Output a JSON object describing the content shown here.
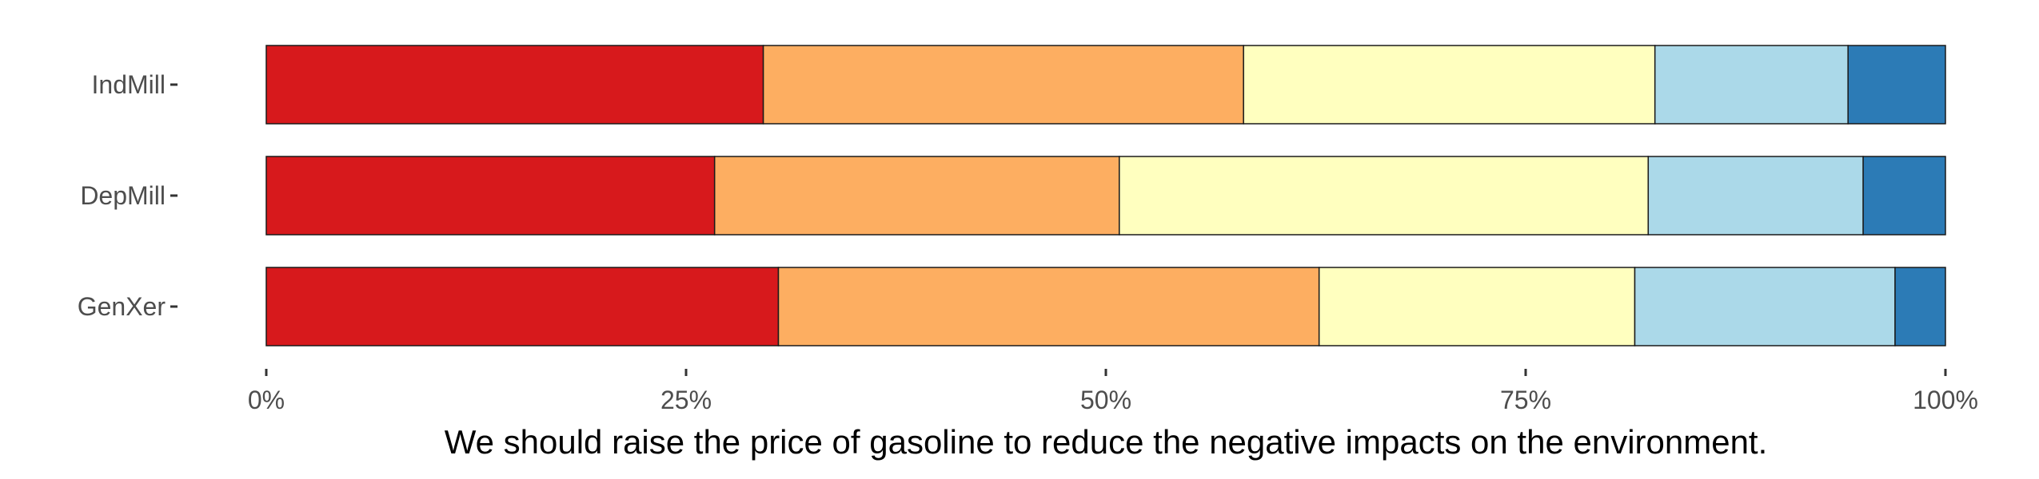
{
  "chart_data": {
    "type": "bar",
    "orientation": "horizontal",
    "stacked": true,
    "categories": [
      "IndMill",
      "DepMill",
      "GenXer"
    ],
    "series": [
      {
        "color": "#d7191c",
        "values": [
          29.6,
          26.7,
          30.5
        ]
      },
      {
        "color": "#fdae61",
        "values": [
          28.6,
          24.1,
          32.2
        ]
      },
      {
        "color": "#ffffbf",
        "values": [
          24.5,
          31.5,
          18.8
        ]
      },
      {
        "color": "#abd9e9",
        "values": [
          11.5,
          12.8,
          15.5
        ]
      },
      {
        "color": "#2c7bb6",
        "values": [
          5.8,
          4.9,
          3.0
        ]
      }
    ],
    "xlim": [
      0,
      100
    ],
    "x_ticks": [
      0,
      25,
      50,
      75,
      100
    ],
    "x_tick_labels": [
      "0%",
      "25%",
      "50%",
      "75%",
      "100%"
    ],
    "xlabel": "We should raise the price of gasoline to reduce the negative impacts on the environment.",
    "ylabel": "",
    "grid": false,
    "legend": "none"
  }
}
